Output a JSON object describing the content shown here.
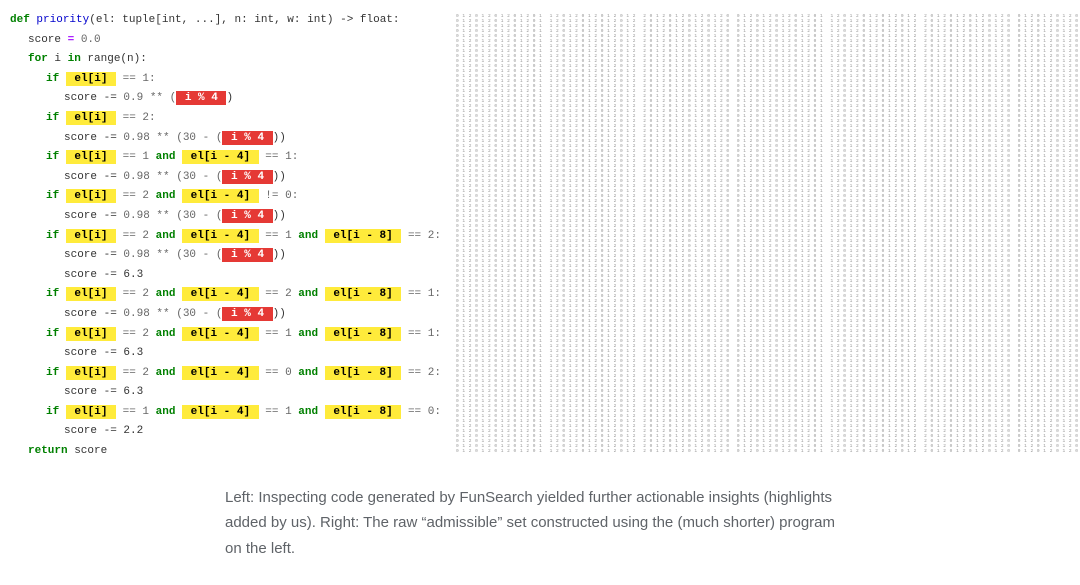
{
  "code": {
    "def_kw": "def",
    "fn_name": "priority",
    "sig_open": "(el: ",
    "sig_tuple": "tuple[int, ...]",
    "sig_rest": ", n: int, w: int) -> float:",
    "score_init_l": "score ",
    "score_init_op": "=",
    "score_init_r": " 0.0",
    "for_kw": "for",
    "for_var": " i ",
    "in_kw": "in",
    "for_range": " range(n):",
    "if_kw": "if",
    "and_kw": "and",
    "return_kw": "return",
    "return_var": " score",
    "hl_eli": " el[i] ",
    "hl_eli4": " el[i - 4] ",
    "hl_eli8": " el[i - 8] ",
    "hl_imod4": " i % 4 ",
    "eq1": " == 1:",
    "eq2": " == 2:",
    "eq1and": " == 1 ",
    "eq2and": " == 2 ",
    "eq0and": " == 0 ",
    "ne0": " != 0:",
    "eq1end": " == 1:",
    "eq2end": " == 2:",
    "eq0end": " == 0:",
    "score_minus": "score -= ",
    "line_p9": "0.9 ** (",
    "line_p98a": "0.98 ** (30 - (",
    "close1": ")",
    "close2": "))",
    "score63": "score -= 6.3",
    "score22": "score -= 2.2",
    "space": " "
  },
  "caption": {
    "line1": "Left: Inspecting code generated by FunSearch yielded further actionable insights (highlights",
    "line2": "added by us). Right: The raw “admissible” set constructed using the (much shorter) program",
    "line3": "on the left."
  },
  "colors": {
    "hl_yellow": "#ffeb3b",
    "hl_red": "#e53935",
    "kw_green": "#008000",
    "fn_blue": "#0000cc",
    "num_gray": "#666666",
    "op_purple": "#aa22ff",
    "caption_gray": "#5f6368",
    "grid_gray": "#999999"
  },
  "grid": {
    "cols": 8,
    "rows_per_cell": 22,
    "sample_row": "0 1 2 0 1 2 0 1 2 0 1 2",
    "numbers": [
      0,
      1,
      2
    ]
  }
}
